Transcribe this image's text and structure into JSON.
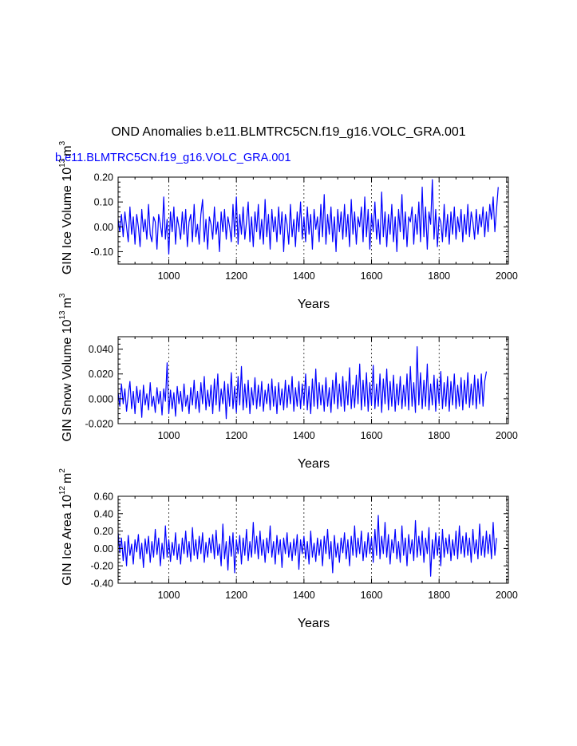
{
  "title": "OND Anomalies b.e11.BLMTRC5CN.f19_g16.VOLC_GRA.001",
  "series_label": "b.e11.BLMTRC5CN.f19_g16.VOLC_GRA.001",
  "colors": {
    "line": "#0000ff",
    "axis": "#000000",
    "grid": "#000000"
  },
  "chart_data": [
    {
      "type": "line",
      "name": "ice-volume",
      "ylabel_main": "GIN Ice Volume 10",
      "ylabel_exp": "13",
      "ylabel_unit": "m",
      "ylabel_unit_exp": "3",
      "xlabel": "Years",
      "xlim": [
        850,
        2005
      ],
      "ylim": [
        -0.15,
        0.2
      ],
      "xticks": [
        1000,
        1200,
        1400,
        1600,
        1800,
        2000
      ],
      "xtick_labels": [
        "1000",
        "1200",
        "1400",
        "1600",
        "1800",
        "2000"
      ],
      "yticks": [
        -0.1,
        0.0,
        0.1,
        0.2
      ],
      "ytick_labels": [
        "-0.10",
        "0.00",
        "0.10",
        "0.20"
      ],
      "grid_x": true,
      "series": [
        {
          "name": "b.e11.BLMTRC5CN.f19_g16.VOLC_GRA.001",
          "x_start": 850,
          "x_end": 2005,
          "step": 5,
          "values": [
            0.03,
            -0.02,
            0.05,
            -0.04,
            0.06,
            0.0,
            -0.06,
            0.08,
            -0.03,
            0.04,
            -0.07,
            0.05,
            0.0,
            -0.08,
            0.07,
            -0.02,
            0.03,
            -0.05,
            0.09,
            -0.03,
            -0.06,
            0.04,
            0.02,
            -0.09,
            0.05,
            0.01,
            -0.04,
            0.12,
            -0.05,
            0.03,
            -0.11,
            0.06,
            -0.02,
            0.08,
            -0.07,
            0.04,
            0.0,
            -0.05,
            0.06,
            -0.03,
            0.07,
            -0.08,
            0.02,
            0.05,
            -0.06,
            0.09,
            -0.04,
            0.01,
            -0.07,
            0.05,
            0.11,
            -0.06,
            0.03,
            -0.09,
            0.04,
            0.01,
            -0.05,
            0.08,
            -0.03,
            0.02,
            -0.1,
            0.06,
            -0.02,
            0.07,
            -0.05,
            0.04,
            0.0,
            -0.06,
            0.09,
            -0.04,
            0.12,
            -0.07,
            0.05,
            -0.03,
            0.08,
            -0.05,
            0.02,
            0.1,
            -0.06,
            0.04,
            -0.08,
            0.06,
            -0.02,
            0.09,
            -0.05,
            0.03,
            -0.07,
            0.11,
            -0.04,
            0.05,
            -0.09,
            0.07,
            -0.02,
            0.04,
            -0.06,
            0.08,
            -0.03,
            0.06,
            -0.1,
            0.05,
            0.01,
            -0.07,
            0.09,
            -0.04,
            0.03,
            -0.08,
            0.06,
            -0.02,
            0.1,
            -0.05,
            0.04,
            -0.06,
            0.08,
            -0.03,
            0.05,
            -0.09,
            0.07,
            -0.01,
            0.04,
            -0.06,
            0.09,
            -0.04,
            0.13,
            -0.07,
            0.05,
            -0.03,
            0.08,
            -0.06,
            0.04,
            -0.1,
            0.07,
            -0.02,
            0.06,
            -0.05,
            0.09,
            -0.04,
            0.05,
            -0.08,
            0.11,
            -0.03,
            0.06,
            -0.07,
            0.04,
            0.0,
            0.08,
            -0.06,
            0.12,
            -0.04,
            0.07,
            -0.09,
            0.05,
            -0.02,
            0.1,
            -0.05,
            0.03,
            -0.07,
            0.14,
            -0.04,
            0.06,
            -0.08,
            0.05,
            -0.03,
            0.09,
            -0.06,
            0.04,
            -0.1,
            0.07,
            -0.02,
            0.13,
            -0.05,
            0.06,
            -0.08,
            0.04,
            0.02,
            0.08,
            -0.07,
            0.05,
            -0.03,
            0.1,
            -0.06,
            0.16,
            -0.04,
            0.08,
            -0.09,
            0.06,
            0.01,
            0.19,
            -0.05,
            0.07,
            -0.08,
            0.04,
            0.02,
            -0.06,
            0.09,
            -0.04,
            0.05,
            -0.07,
            0.06,
            -0.03,
            0.08,
            -0.05,
            0.04,
            -0.02,
            0.07,
            -0.06,
            0.05,
            -0.03,
            0.09,
            -0.04,
            0.06,
            0.02,
            -0.05,
            0.07,
            -0.03,
            0.05,
            0.0,
            0.08,
            -0.04,
            0.06,
            -0.02,
            0.09,
            0.03,
            0.12,
            -0.02,
            0.07,
            0.16
          ]
        }
      ]
    },
    {
      "type": "line",
      "name": "snow-volume",
      "ylabel_main": "GIN Snow Volume 10",
      "ylabel_exp": "13",
      "ylabel_unit": "m",
      "ylabel_unit_exp": "3",
      "xlabel": "Years",
      "xlim": [
        850,
        2005
      ],
      "ylim": [
        -0.02,
        0.05
      ],
      "xticks": [
        1000,
        1200,
        1400,
        1600,
        1800,
        2000
      ],
      "xtick_labels": [
        "1000",
        "1200",
        "1400",
        "1600",
        "1800",
        "2000"
      ],
      "yticks": [
        -0.02,
        0.0,
        0.02,
        0.04
      ],
      "ytick_labels": [
        "-0.020",
        "0.000",
        "0.020",
        "0.040"
      ],
      "grid_x": true,
      "series": [
        {
          "name": "b.e11.BLMTRC5CN.f19_g16.VOLC_GRA.001",
          "x_start": 850,
          "x_end": 2005,
          "step": 5,
          "values": [
            0.005,
            -0.006,
            0.012,
            -0.004,
            0.008,
            -0.01,
            0.003,
            0.014,
            -0.008,
            0.006,
            -0.012,
            0.01,
            -0.003,
            0.007,
            -0.015,
            0.011,
            -0.005,
            0.004,
            -0.009,
            0.013,
            -0.006,
            0.002,
            -0.011,
            0.009,
            -0.004,
            0.006,
            -0.013,
            0.008,
            -0.002,
            0.029,
            -0.012,
            0.007,
            -0.008,
            0.005,
            -0.014,
            0.01,
            -0.004,
            0.006,
            -0.01,
            0.012,
            -0.006,
            0.003,
            -0.012,
            0.009,
            -0.005,
            0.015,
            -0.008,
            0.006,
            -0.011,
            0.013,
            -0.004,
            0.018,
            -0.009,
            0.007,
            -0.006,
            0.011,
            -0.012,
            0.016,
            -0.005,
            0.02,
            -0.01,
            0.008,
            -0.004,
            0.014,
            -0.016,
            0.012,
            -0.006,
            0.021,
            -0.008,
            0.01,
            -0.011,
            0.018,
            -0.005,
            0.026,
            -0.009,
            0.012,
            -0.007,
            0.015,
            -0.012,
            0.009,
            -0.005,
            0.017,
            -0.008,
            0.011,
            -0.006,
            0.014,
            -0.01,
            0.007,
            -0.004,
            0.012,
            -0.009,
            0.016,
            -0.006,
            0.01,
            -0.012,
            0.013,
            -0.005,
            0.008,
            -0.009,
            0.015,
            -0.007,
            0.011,
            -0.004,
            0.018,
            -0.01,
            0.009,
            -0.006,
            0.014,
            -0.008,
            0.012,
            -0.005,
            0.02,
            -0.009,
            0.01,
            -0.012,
            0.016,
            -0.006,
            0.024,
            -0.008,
            0.013,
            -0.005,
            0.011,
            -0.01,
            0.017,
            -0.006,
            0.009,
            -0.011,
            0.015,
            -0.004,
            0.021,
            -0.008,
            0.012,
            -0.006,
            0.018,
            -0.01,
            0.014,
            -0.005,
            0.025,
            -0.008,
            0.011,
            -0.007,
            0.019,
            -0.004,
            0.028,
            -0.009,
            0.015,
            -0.006,
            0.021,
            -0.01,
            0.013,
            -0.005,
            0.027,
            -0.008,
            0.012,
            -0.006,
            0.02,
            -0.011,
            0.016,
            -0.004,
            0.024,
            -0.009,
            0.014,
            -0.006,
            0.019,
            -0.01,
            0.012,
            -0.005,
            0.018,
            -0.008,
            0.011,
            -0.006,
            0.02,
            -0.009,
            0.026,
            -0.006,
            0.013,
            -0.011,
            0.042,
            -0.005,
            0.021,
            -0.008,
            0.015,
            -0.006,
            0.028,
            -0.009,
            0.012,
            -0.005,
            0.019,
            -0.01,
            0.016,
            -0.004,
            0.022,
            -0.008,
            0.013,
            -0.006,
            0.018,
            -0.01,
            0.014,
            -0.005,
            0.02,
            -0.008,
            0.011,
            -0.006,
            0.017,
            -0.009,
            0.015,
            -0.004,
            0.021,
            -0.007,
            0.012,
            -0.005,
            0.019,
            -0.008,
            0.016,
            -0.004,
            0.02,
            -0.006,
            0.014,
            0.022
          ]
        }
      ]
    },
    {
      "type": "line",
      "name": "ice-area",
      "ylabel_main": "GIN Ice Area 10",
      "ylabel_exp": "12",
      "ylabel_unit": "m",
      "ylabel_unit_exp": "2",
      "xlabel": "Years",
      "xlim": [
        850,
        2005
      ],
      "ylim": [
        -0.4,
        0.6
      ],
      "xticks": [
        1000,
        1200,
        1400,
        1600,
        1800,
        2000
      ],
      "xtick_labels": [
        "1000",
        "1200",
        "1400",
        "1600",
        "1800",
        "2000"
      ],
      "yticks": [
        -0.4,
        -0.2,
        0.0,
        0.2,
        0.4,
        0.6
      ],
      "ytick_labels": [
        "-0.40",
        "-0.20",
        "0.00",
        "0.20",
        "0.40",
        "0.60"
      ],
      "grid_x": true,
      "series": [
        {
          "name": "b.e11.BLMTRC5CN.f19_g16.VOLC_GRA.001",
          "x_start": 850,
          "x_end": 2005,
          "step": 5,
          "values": [
            0.18,
            -0.05,
            0.12,
            -0.14,
            0.08,
            -0.2,
            0.15,
            -0.08,
            0.05,
            -0.18,
            0.1,
            -0.04,
            0.16,
            -0.12,
            0.06,
            -0.22,
            0.11,
            -0.06,
            0.14,
            -0.16,
            0.08,
            -0.1,
            0.22,
            -0.07,
            0.12,
            -0.2,
            0.06,
            -0.12,
            0.26,
            -0.1,
            0.1,
            -0.15,
            0.07,
            -0.08,
            0.18,
            -0.13,
            0.05,
            -0.18,
            0.12,
            -0.06,
            0.2,
            -0.1,
            0.08,
            -0.15,
            0.24,
            -0.08,
            0.1,
            -0.12,
            0.14,
            -0.06,
            0.18,
            -0.16,
            0.07,
            -0.1,
            0.12,
            -0.05,
            0.16,
            -0.12,
            0.21,
            -0.08,
            0.05,
            -0.2,
            0.28,
            -0.12,
            0.08,
            -0.25,
            0.14,
            -0.09,
            0.18,
            -0.28,
            0.1,
            -0.06,
            0.15,
            -0.18,
            0.12,
            -0.08,
            0.22,
            -0.14,
            0.08,
            -0.1,
            0.3,
            -0.06,
            0.14,
            -0.12,
            0.2,
            -0.08,
            0.1,
            -0.16,
            0.12,
            -0.05,
            0.26,
            -0.1,
            0.08,
            -0.18,
            0.15,
            -0.07,
            0.1,
            -0.22,
            0.12,
            -0.06,
            0.18,
            -0.1,
            0.07,
            -0.14,
            0.11,
            -0.08,
            0.16,
            -0.24,
            0.1,
            -0.06,
            0.14,
            -0.12,
            0.08,
            -0.18,
            0.2,
            -0.1,
            0.06,
            -0.15,
            0.12,
            -0.08,
            0.1,
            -0.2,
            0.14,
            -0.06,
            0.22,
            -0.12,
            0.08,
            -0.28,
            0.15,
            -0.1,
            0.06,
            -0.16,
            0.12,
            -0.05,
            0.18,
            -0.12,
            0.1,
            -0.2,
            0.14,
            -0.08,
            0.26,
            -0.1,
            0.12,
            -0.06,
            0.2,
            -0.14,
            0.08,
            -0.1,
            0.18,
            -0.06,
            0.12,
            -0.16,
            0.22,
            -0.08,
            0.38,
            -0.12,
            0.14,
            -0.06,
            0.3,
            -0.1,
            0.16,
            -0.18,
            0.1,
            -0.05,
            0.22,
            -0.12,
            0.08,
            -0.16,
            0.26,
            -0.08,
            0.12,
            -0.2,
            0.16,
            -0.06,
            0.1,
            -0.14,
            0.32,
            -0.1,
            0.14,
            -0.08,
            0.2,
            -0.16,
            0.12,
            -0.06,
            0.24,
            -0.32,
            0.1,
            -0.12,
            0.18,
            -0.08,
            0.14,
            -0.2,
            0.22,
            -0.1,
            0.12,
            -0.06,
            0.16,
            -0.14,
            0.1,
            -0.08,
            0.2,
            -0.12,
            0.26,
            -0.06,
            0.14,
            -0.1,
            0.18,
            -0.08,
            0.12,
            -0.16,
            0.22,
            -0.06,
            0.1,
            -0.12,
            0.28,
            -0.08,
            0.14,
            -0.1,
            0.2,
            -0.06,
            0.16,
            -0.12,
            0.3,
            -0.08,
            0.12
          ]
        }
      ]
    }
  ]
}
